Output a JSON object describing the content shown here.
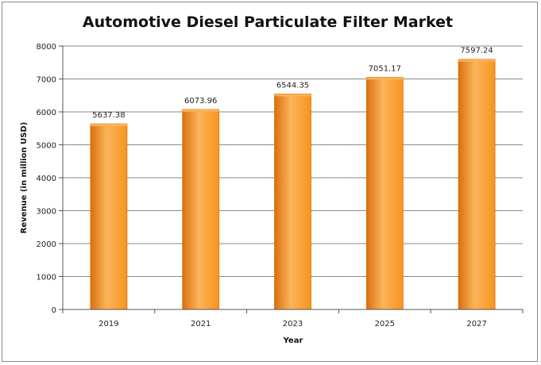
{
  "chart_data": {
    "type": "bar",
    "title": "Automotive Diesel Particulate Filter Market",
    "xlabel": "Year",
    "ylabel": "Revenue (in million USD)",
    "categories": [
      "2019",
      "2021",
      "2023",
      "2025",
      "2027"
    ],
    "values": [
      5637.38,
      6073.96,
      6544.35,
      7051.17,
      7597.24
    ],
    "value_labels": [
      "5637.38",
      "6073.96",
      "6544.35",
      "7051.17",
      "7597.24"
    ],
    "ylim": [
      0,
      8000
    ],
    "yticks": [
      "0",
      "1000",
      "2000",
      "3000",
      "4000",
      "5000",
      "6000",
      "7000",
      "8000"
    ],
    "grid": true,
    "legend": "none",
    "bar_color": "#f7941d",
    "bar_highlight": "#fbb45a",
    "bar_edge": "#d9700f"
  }
}
